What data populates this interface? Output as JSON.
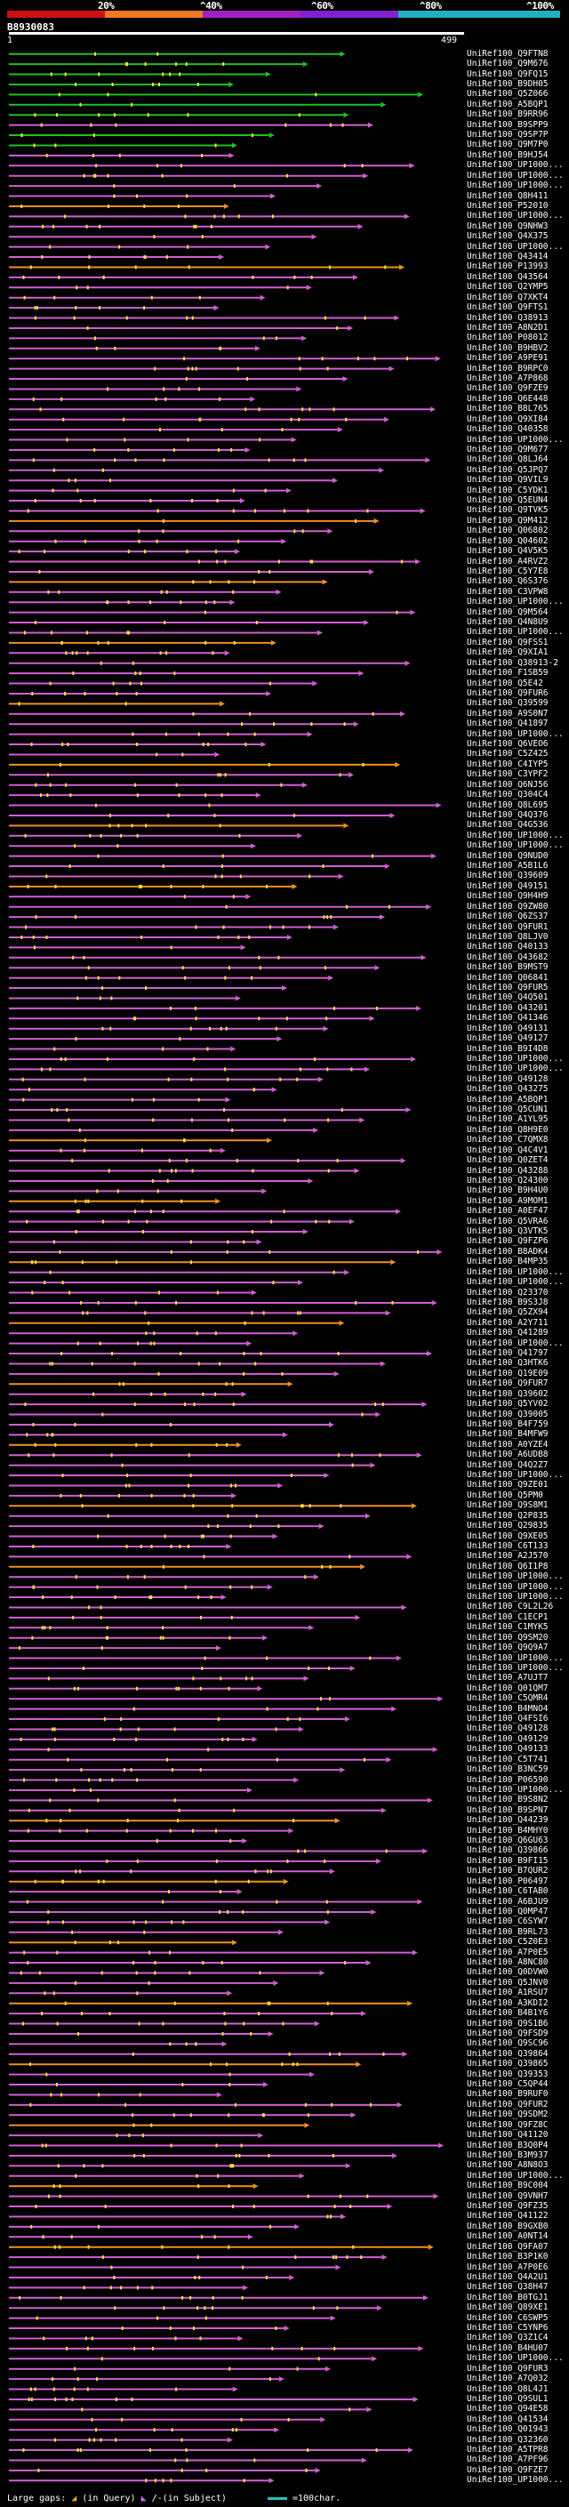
{
  "header": {
    "legend_ticks": [
      "20%",
      "^40%",
      "^60%",
      "^80%",
      "^100%"
    ],
    "legend_colors": [
      "#d01010",
      "#f07820",
      "#a020c0",
      "#8020d0",
      "#20b0c0"
    ],
    "query_id": "B8930083",
    "scale_start": "1",
    "scale_end": "499"
  },
  "footer": {
    "large_gaps": "Large gaps:",
    "in_query": "(in Query)",
    "in_subject": "/-(in Subject)",
    "scale_note": "=100char."
  },
  "chart_data": {
    "type": "alignment-map",
    "query_length": 499,
    "colors": {
      "high_identity": "#20c020",
      "medium_identity": "#d060d0",
      "low_identity": "#f09020",
      "gap": "#f0e040"
    },
    "hits": [
      "UniRef100_Q9FTN8",
      "UniRef100_Q9M676",
      "UniRef100_Q9FQ15",
      "UniRef100_B9DH05",
      "UniRef100_Q5Z066",
      "UniRef100_A5BQP1",
      "UniRef100_B9RR96",
      "UniRef100_B9SPP9",
      "UniRef100_Q9SP7P",
      "UniRef100_Q9M7P0",
      "UniRef100_B9HJ54",
      "UniRef100_UP1000...",
      "UniRef100_UP1000...",
      "UniRef100_UP1000...",
      "UniRef100_Q8H411",
      "UniRef100_P52010",
      "UniRef100_UP1000...",
      "UniRef100_Q9NHW3",
      "UniRef100_Q4X375",
      "UniRef100_UP1000...",
      "UniRef100_Q43414",
      "UniRef100_P13993",
      "UniRef100_Q43564",
      "UniRef100_Q2YMP5",
      "UniRef100_Q7XKT4",
      "UniRef100_Q9FTS1",
      "UniRef100_Q38913",
      "UniRef100_A8N2D1",
      "UniRef100_P08012",
      "UniRef100_B9HBV2",
      "UniRef100_A9PE91",
      "UniRef100_B9RPC0",
      "UniRef100_A7P868",
      "UniRef100_Q9FZE9",
      "UniRef100_Q6E448",
      "UniRef100_B8L765",
      "UniRef100_Q9XI84",
      "UniRef100_Q40358",
      "UniRef100_UP1000...",
      "UniRef100_Q9M677",
      "UniRef100_Q8LJ64",
      "UniRef100_Q5JPQ7",
      "UniRef100_Q9VIL9",
      "UniRef100_C5YDK1",
      "UniRef100_Q5EUN4",
      "UniRef100_Q9TVK5",
      "UniRef100_Q9M412",
      "UniRef100_Q06802",
      "UniRef100_Q04602",
      "UniRef100_Q4V5K5",
      "UniRef100_A4RVZ2",
      "UniRef100_C5Y7E8",
      "UniRef100_Q6S376",
      "UniRef100_C3VPW8",
      "UniRef100_UP1000...",
      "UniRef100_Q9M564",
      "UniRef100_Q4N8U9",
      "UniRef100_UP1000...",
      "UniRef100_Q9FSS1",
      "UniRef100_Q9XIA1",
      "UniRef100_Q38913-2",
      "UniRef100_F1SB59",
      "UniRef100_Q5E42",
      "UniRef100_Q9FUR6",
      "UniRef100_Q39599",
      "UniRef100_A9S0N7",
      "UniRef100_Q41897",
      "UniRef100_UP1000...",
      "UniRef100_Q6VEO6",
      "UniRef100_C5Z425",
      "UniRef100_C4IYP5",
      "UniRef100_C3YPF2",
      "UniRef100_Q6NJ56",
      "UniRef100_Q304C4",
      "UniRef100_Q8L695",
      "UniRef100_Q4Q376",
      "UniRef100_Q4G536",
      "UniRef100_UP1000...",
      "UniRef100_UP1000...",
      "UniRef100_Q9NUD0",
      "UniRef100_A5B1L6",
      "UniRef100_Q39609",
      "UniRef100_Q49151",
      "UniRef100_Q9H4H9",
      "UniRef100_Q9ZW80",
      "UniRef100_Q6ZS37",
      "UniRef100_Q9FUR1",
      "UniRef100_Q8LJV0",
      "UniRef100_Q40133",
      "UniRef100_Q43682",
      "UniRef100_B9MST9",
      "UniRef100_Q06841",
      "UniRef100_Q9FUR5",
      "UniRef100_Q4Q501",
      "UniRef100_Q43201",
      "UniRef100_Q41346",
      "UniRef100_Q49131",
      "UniRef100_Q49127",
      "UniRef100_B9I4D8",
      "UniRef100_UP1000...",
      "UniRef100_UP1000...",
      "UniRef100_Q49128",
      "UniRef100_Q43275",
      "UniRef100_A5BQP1",
      "UniRef100_Q5CUN1",
      "UniRef100_A1YL95",
      "UniRef100_Q8H9E0",
      "UniRef100_C7QMX8",
      "UniRef100_Q4C4V1",
      "UniRef100_Q0ZET4",
      "UniRef100_Q43288",
      "UniRef100_Q24300",
      "UniRef100_B9H4U0",
      "UniRef100_A9MOM1",
      "UniRef100_A0EF47",
      "UniRef100_Q5VRA6",
      "UniRef100_Q3VTK5",
      "UniRef100_Q9FZP6",
      "UniRef100_B8ADK4",
      "UniRef100_B4MP35",
      "UniRef100_UP1000...",
      "UniRef100_UP1000...",
      "UniRef100_Q23370",
      "UniRef100_B9S3J8",
      "UniRef100_Q5ZX94",
      "UniRef100_A2Y711",
      "UniRef100_Q41289",
      "UniRef100_UP1000...",
      "UniRef100_Q41797",
      "UniRef100_Q3HTK6",
      "UniRef100_Q19E09",
      "UniRef100_Q9FUR7",
      "UniRef100_Q39602",
      "UniRef100_Q5YV02",
      "UniRef100_Q39005",
      "UniRef100_B4F759",
      "UniRef100_B4MFW9",
      "UniRef100_A0YZE4",
      "UniRef100_A6UDB8",
      "UniRef100_Q4Q2Z7",
      "UniRef100_UP1000...",
      "UniRef100_Q9ZE01",
      "UniRef100_Q5PM0",
      "UniRef100_Q9S8M1",
      "UniRef100_Q2P835",
      "UniRef100_Q29835",
      "UniRef100_Q9XE05",
      "UniRef100_C6T133",
      "UniRef100_A2J570",
      "UniRef100_Q6I1P8",
      "UniRef100_UP1000...",
      "UniRef100_UP1000...",
      "UniRef100_UP1000...",
      "UniRef100_C9L2L26",
      "UniRef100_C1ECP1",
      "UniRef100_C1MYK5",
      "UniRef100_Q9SM20",
      "UniRef100_Q9Q9A7",
      "UniRef100_UP1000...",
      "UniRef100_UP1000...",
      "UniRef100_A7UJT7",
      "UniRef100_Q01QM7",
      "UniRef100_C5QMR4",
      "UniRef100_B4MNO4",
      "UniRef100_Q4FSI6",
      "UniRef100_Q49128",
      "UniRef100_Q49129",
      "UniRef100_Q49133",
      "UniRef100_C5T741",
      "UniRef100_B3NC59",
      "UniRef100_P06590",
      "UniRef100_UP1000...",
      "UniRef100_B9S8N2",
      "UniRef100_B9SPN7",
      "UniRef100_Q44239",
      "UniRef100_B4MHY0",
      "UniRef100_Q6GU63",
      "UniRef100_Q39866",
      "UniRef100_B9FI15",
      "UniRef100_B7QUR2",
      "UniRef100_P06497",
      "UniRef100_C6TAB0",
      "UniRef100_A6BJU9",
      "UniRef100_Q0MP47",
      "UniRef100_C6SYW7",
      "UniRef100_B9RL73",
      "UniRef100_C5Z0E3",
      "UniRef100_A7P0E5",
      "UniRef100_A8NC80",
      "UniRef100_Q0DVW0",
      "UniRef100_Q5JNV0",
      "UniRef100_A1RSU7",
      "UniRef100_A3KDI2",
      "UniRef100_B4B1Y6",
      "UniRef100_Q9S1B6",
      "UniRef100_Q9FSD9",
      "UniRef100_Q9SC96",
      "UniRef100_Q39864",
      "UniRef100_Q39865",
      "UniRef100_Q39353",
      "UniRef100_C5QP44",
      "UniRef100_B9RUF0",
      "UniRef100_Q9FUR2",
      "UniRef100_Q9SDM2",
      "UniRef100_Q9FZ8C",
      "UniRef100_Q41120",
      "UniRef100_B3Q0P4",
      "UniRef100_B3M937",
      "UniRef100_A8N8O3",
      "UniRef100_UP1000...",
      "UniRef100_B9C004",
      "UniRef100_Q9VNH7",
      "UniRef100_Q9FZ35",
      "UniRef100_Q41122",
      "UniRef100_B9GXB0",
      "UniRef100_A0NT14",
      "UniRef100_Q9FA07",
      "UniRef100_B3P1K0",
      "UniRef100_A7P0E6",
      "UniRef100_Q4A2U1",
      "UniRef100_Q38H47",
      "UniRef100_B0TGJ1",
      "UniRef100_Q89XE1",
      "UniRef100_C6SWP5",
      "UniRef100_C5YNP6",
      "UniRef100_Q3Z1C4",
      "UniRef100_B4HU07",
      "UniRef100_UP1000...",
      "UniRef100_Q9FUR3",
      "UniRef100_A7Q032",
      "UniRef100_Q8L4J1",
      "UniRef100_Q9SUL1",
      "UniRef100_Q94E58",
      "UniRef100_Q41534",
      "UniRef100_Q01943",
      "UniRef100_Q32360",
      "UniRef100_A5TPR8",
      "UniRef100_A7PF96",
      "UniRef100_Q9FZE7",
      "UniRef100_UP1000..."
    ]
  }
}
